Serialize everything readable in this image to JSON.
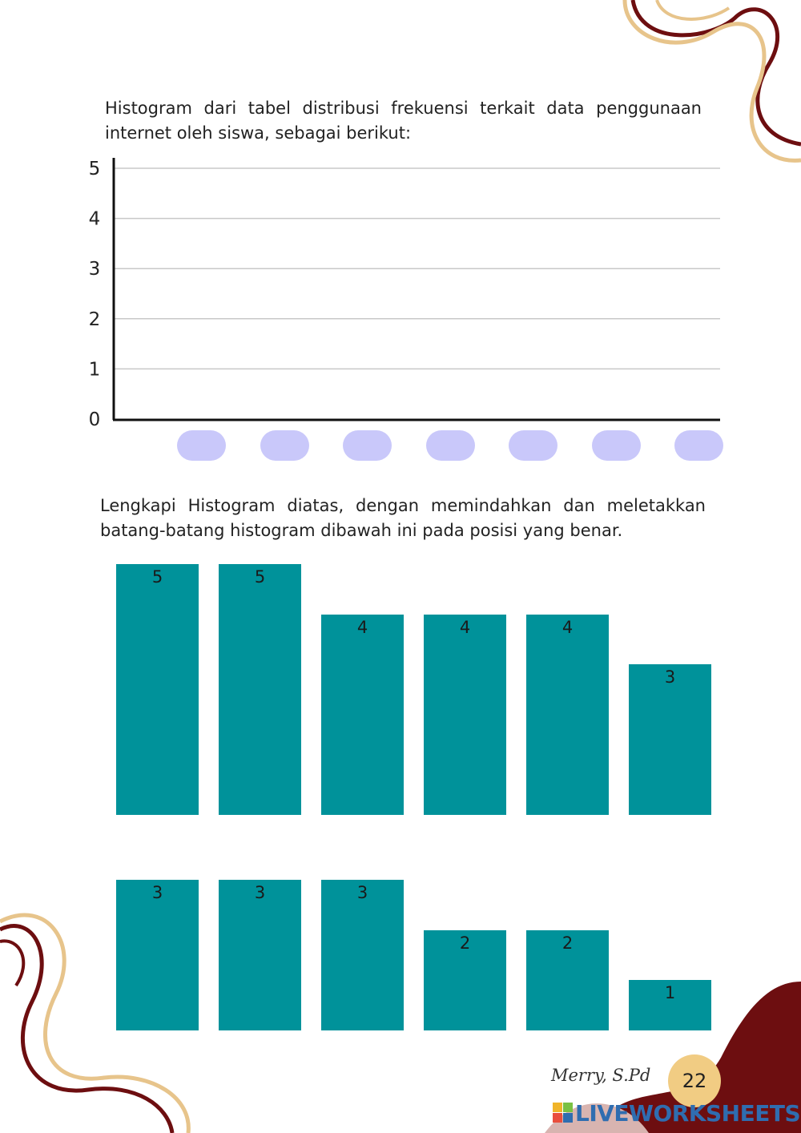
{
  "intro": {
    "text": "Histogram dari tabel distribusi frekuensi terkait data penggunaan internet oleh siswa, sebagai berikut:"
  },
  "histogram_axes": {
    "y_ticks": [
      "0",
      "1",
      "2",
      "3",
      "4",
      "5"
    ],
    "y_max": 5,
    "gridlines": true,
    "slot_count": 7
  },
  "instruction": {
    "text": "Lengkapi Histogram diatas, dengan memindahkan dan meletakkan batang-batang histogram dibawah ini pada posisi yang benar."
  },
  "draggable_bars": {
    "row1": [
      {
        "label": "5",
        "value": 5
      },
      {
        "label": "5",
        "value": 5
      },
      {
        "label": "4",
        "value": 4
      },
      {
        "label": "4",
        "value": 4
      },
      {
        "label": "4",
        "value": 4
      },
      {
        "label": "3",
        "value": 3
      }
    ],
    "row2": [
      {
        "label": "3",
        "value": 3
      },
      {
        "label": "3",
        "value": 3
      },
      {
        "label": "3",
        "value": 3
      },
      {
        "label": "2",
        "value": 2
      },
      {
        "label": "2",
        "value": 2
      },
      {
        "label": "1",
        "value": 1
      }
    ]
  },
  "footer": {
    "author": "Merry, S.Pd",
    "page_number": "22",
    "watermark": "LIVEWORKSHEETS"
  },
  "colors": {
    "bar": "#00929a",
    "slot": "#c9c8fa",
    "page_badge": "#f1cc83",
    "decor_dark": "#6d0e10",
    "decor_light": "#e7c48b"
  }
}
